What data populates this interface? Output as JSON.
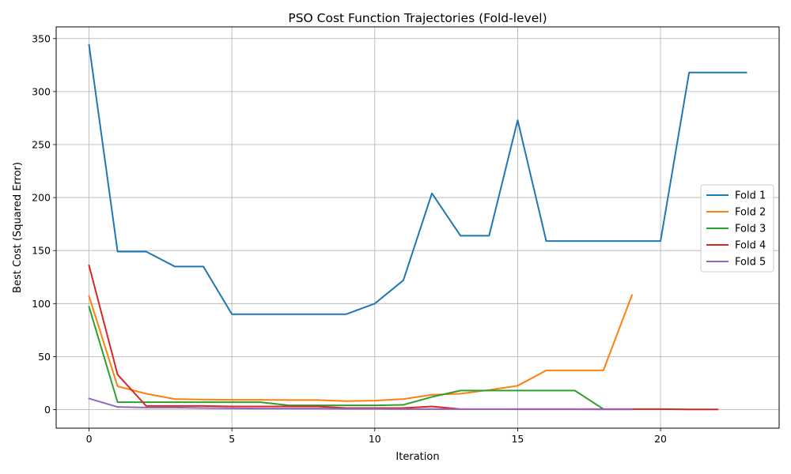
{
  "chart_data": {
    "type": "line",
    "title": "PSO Cost Function Trajectories (Fold-level)",
    "xlabel": "Iteration",
    "ylabel": "Best Cost (Squared Error)",
    "xlim": [
      -1.15,
      24.15
    ],
    "ylim": [
      -17.5,
      361
    ],
    "xticks": [
      0,
      5,
      10,
      15,
      20
    ],
    "yticks": [
      0,
      50,
      100,
      150,
      200,
      250,
      300,
      350
    ],
    "grid": true,
    "legend_position": "center-right",
    "series": [
      {
        "name": "Fold 1",
        "color": "#1f77b4",
        "x": [
          0,
          1,
          2,
          3,
          4,
          5,
          6,
          7,
          8,
          9,
          10,
          11,
          12,
          13,
          14,
          15,
          16,
          17,
          18,
          19,
          20,
          21,
          22,
          23
        ],
        "values": [
          344,
          149,
          149,
          135,
          135,
          90,
          90,
          90,
          90,
          90,
          100,
          122,
          204,
          164,
          164,
          273,
          159,
          159,
          159,
          159,
          159,
          318,
          318,
          318
        ]
      },
      {
        "name": "Fold 2",
        "color": "#ff7f0e",
        "x": [
          0,
          1,
          2,
          3,
          4,
          5,
          6,
          7,
          8,
          9,
          10,
          11,
          12,
          13,
          14,
          15,
          16,
          17,
          18,
          19
        ],
        "values": [
          107,
          22,
          15,
          10,
          9.5,
          9.2,
          9.2,
          9,
          9,
          8,
          8.5,
          10,
          14,
          15,
          18.5,
          22.5,
          37,
          37,
          37,
          108
        ]
      },
      {
        "name": "Fold 3",
        "color": "#2ca02c",
        "x": [
          0,
          1,
          2,
          3,
          4,
          5,
          6,
          7,
          8,
          9,
          10,
          11,
          12,
          13,
          14,
          15,
          16,
          17,
          18
        ],
        "values": [
          97,
          7,
          7,
          7,
          7,
          7,
          7,
          4,
          4,
          4,
          4,
          4.5,
          12,
          18,
          18,
          18,
          18,
          18,
          0.5
        ]
      },
      {
        "name": "Fold 4",
        "color": "#d62728",
        "x": [
          0,
          1,
          2,
          3,
          4,
          5,
          6,
          7,
          8,
          9,
          10,
          11,
          12,
          13,
          14,
          15,
          16,
          17,
          18,
          19,
          20,
          21,
          22
        ],
        "values": [
          136,
          33,
          3.5,
          3.5,
          3.5,
          3,
          3,
          3,
          3,
          1.5,
          1.5,
          1.5,
          3,
          0.5,
          0.5,
          0.5,
          0.5,
          0.5,
          0.5,
          0.5,
          0.5,
          0.2,
          0.2
        ]
      },
      {
        "name": "Fold 5",
        "color": "#9467bd",
        "x": [
          0,
          1,
          2,
          3,
          4,
          5,
          6,
          7,
          8,
          9,
          10,
          11,
          12,
          13,
          14,
          15,
          16,
          17,
          18,
          19
        ],
        "values": [
          10.5,
          2.5,
          2,
          2,
          1.5,
          1.2,
          1,
          1,
          1,
          0.8,
          0.8,
          0.5,
          0.5,
          0.4,
          0.4,
          0.3,
          0.3,
          0.3,
          0.2,
          0.2
        ]
      }
    ]
  }
}
